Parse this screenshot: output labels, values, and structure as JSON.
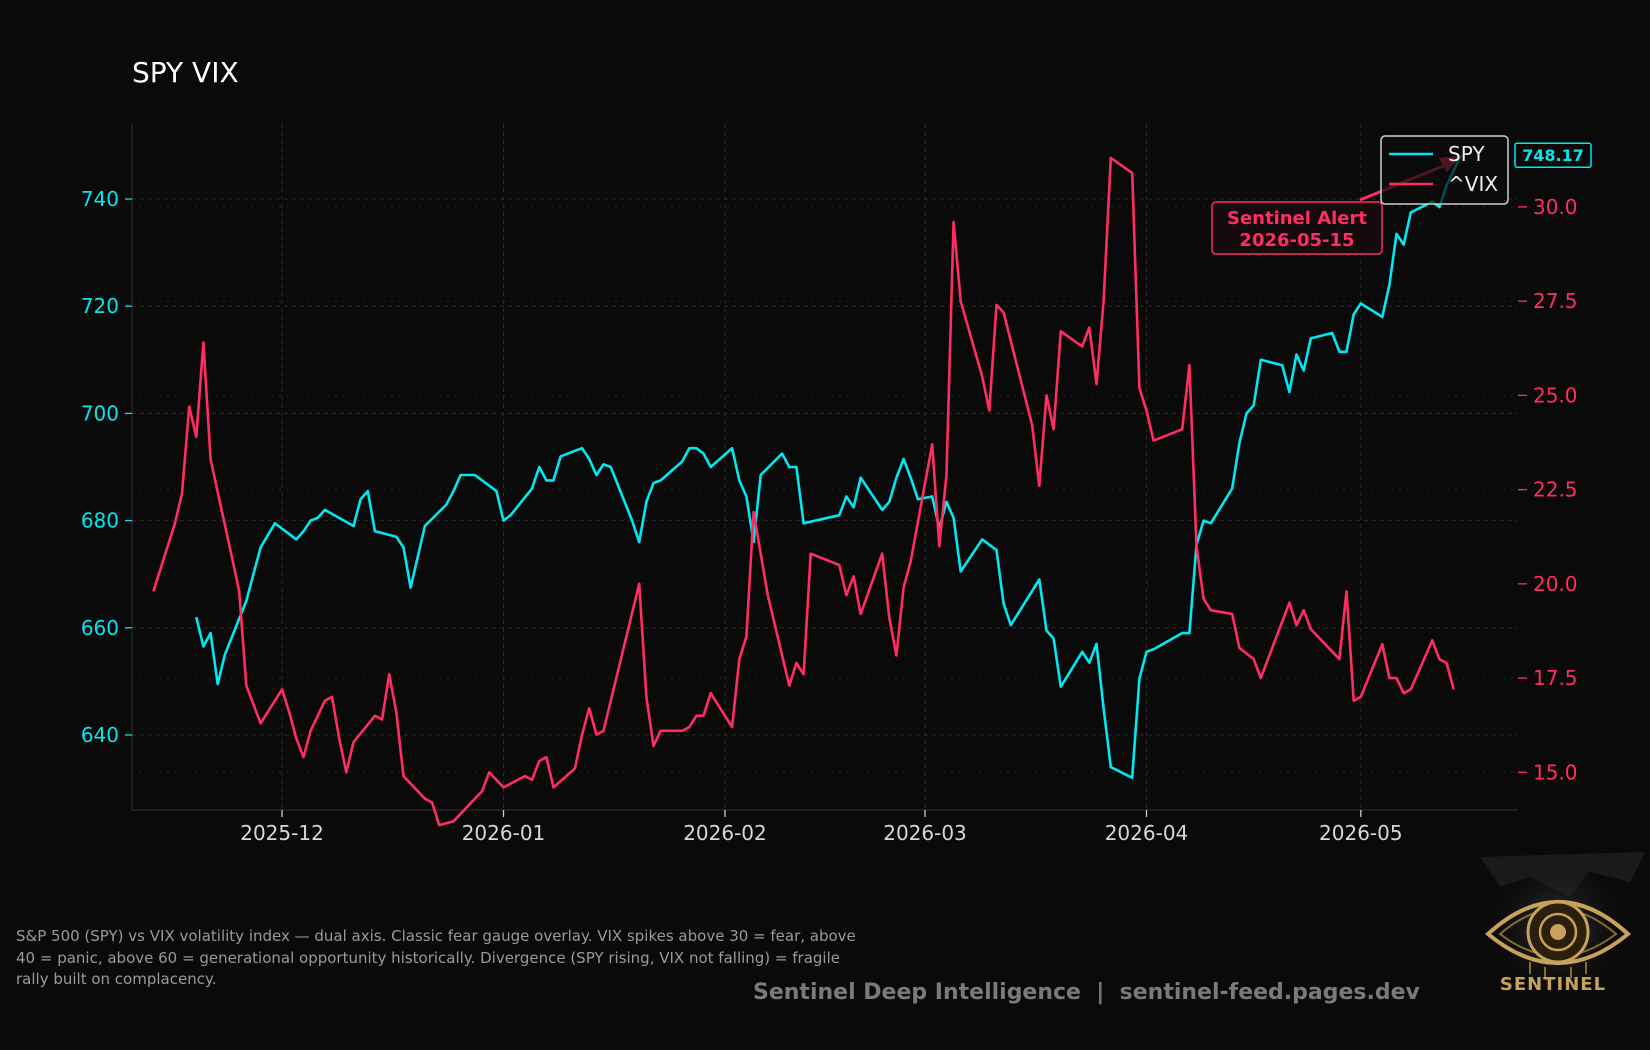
{
  "chart_data": {
    "type": "line",
    "title": "SPY VIX",
    "xlabel": "",
    "ylabel_left": "",
    "ylabel_right": "",
    "x_range": [
      "2025-11-10",
      "2026-05-23"
    ],
    "x_ticks": [
      "2025-12-01",
      "2026-01-01",
      "2026-02-01",
      "2026-03-01",
      "2026-04-01",
      "2026-05-01"
    ],
    "x_tick_labels": [
      "2025-12",
      "2026-01",
      "2026-02",
      "2026-03",
      "2026-04",
      "2026-05"
    ],
    "y_left": {
      "ylim": [
        626,
        754
      ],
      "ticks": [
        640,
        660,
        680,
        700,
        720,
        740
      ],
      "color": "#00e8f0"
    },
    "y_right": {
      "ylim": [
        14.0,
        32.2
      ],
      "ticks": [
        15.0,
        17.5,
        20.0,
        22.5,
        25.0,
        27.5,
        30.0
      ],
      "color": "#ff2d62"
    },
    "grid": true,
    "legend_placement": "top-right",
    "series": [
      {
        "name": "SPY",
        "axis": "left",
        "color": "#00e8f0",
        "points": [
          [
            "2025-11-19",
            662
          ],
          [
            "2025-11-20",
            656.5
          ],
          [
            "2025-11-21",
            659
          ],
          [
            "2025-11-22",
            649.5
          ],
          [
            "2025-11-23",
            655
          ],
          [
            "2025-11-26",
            665
          ],
          [
            "2025-11-28",
            675
          ],
          [
            "2025-11-30",
            679.5
          ],
          [
            "2025-12-03",
            676.5
          ],
          [
            "2025-12-04",
            678
          ],
          [
            "2025-12-05",
            680
          ],
          [
            "2025-12-06",
            680.5
          ],
          [
            "2025-12-07",
            682
          ],
          [
            "2025-12-11",
            679
          ],
          [
            "2025-12-12",
            684
          ],
          [
            "2025-12-13",
            685.5
          ],
          [
            "2025-12-14",
            678
          ],
          [
            "2025-12-17",
            677
          ],
          [
            "2025-12-18",
            675
          ],
          [
            "2025-12-19",
            667.5
          ],
          [
            "2025-12-21",
            679
          ],
          [
            "2025-12-24",
            683
          ],
          [
            "2025-12-25",
            685.5
          ],
          [
            "2025-12-26",
            688.5
          ],
          [
            "2025-12-28",
            688.5
          ],
          [
            "2025-12-31",
            685.5
          ],
          [
            "2026-01-01",
            680
          ],
          [
            "2026-01-02",
            681
          ],
          [
            "2026-01-05",
            686
          ],
          [
            "2026-01-06",
            690
          ],
          [
            "2026-01-07",
            687.5
          ],
          [
            "2026-01-08",
            687.5
          ],
          [
            "2026-01-09",
            692
          ],
          [
            "2026-01-11",
            693
          ],
          [
            "2026-01-12",
            693.5
          ],
          [
            "2026-01-13",
            691.5
          ],
          [
            "2026-01-14",
            688.5
          ],
          [
            "2026-01-15",
            690.5
          ],
          [
            "2026-01-16",
            690
          ],
          [
            "2026-01-19",
            680
          ],
          [
            "2026-01-20",
            676
          ],
          [
            "2026-01-21",
            683.5
          ],
          [
            "2026-01-22",
            687
          ],
          [
            "2026-01-23",
            687.5
          ],
          [
            "2026-01-26",
            691
          ],
          [
            "2026-01-27",
            693.5
          ],
          [
            "2026-01-28",
            693.5
          ],
          [
            "2026-01-29",
            692.5
          ],
          [
            "2026-01-30",
            690
          ],
          [
            "2026-02-02",
            693.5
          ],
          [
            "2026-02-03",
            687.5
          ],
          [
            "2026-02-04",
            684.5
          ],
          [
            "2026-02-05",
            676
          ],
          [
            "2026-02-06",
            688.5
          ],
          [
            "2026-02-09",
            692.5
          ],
          [
            "2026-02-10",
            690
          ],
          [
            "2026-02-11",
            690
          ],
          [
            "2026-02-12",
            679.5
          ],
          [
            "2026-02-17",
            681
          ],
          [
            "2026-02-18",
            684.5
          ],
          [
            "2026-02-19",
            682.5
          ],
          [
            "2026-02-20",
            688
          ],
          [
            "2026-02-23",
            682
          ],
          [
            "2026-02-24",
            683.5
          ],
          [
            "2026-02-25",
            688
          ],
          [
            "2026-02-26",
            691.5
          ],
          [
            "2026-02-27",
            688
          ],
          [
            "2026-02-28",
            684
          ],
          [
            "2026-03-02",
            684.5
          ],
          [
            "2026-03-03",
            678.5
          ],
          [
            "2026-03-04",
            683.5
          ],
          [
            "2026-03-05",
            680.5
          ],
          [
            "2026-03-06",
            670.5
          ],
          [
            "2026-03-09",
            676.5
          ],
          [
            "2026-03-11",
            674.5
          ],
          [
            "2026-03-12",
            664.5
          ],
          [
            "2026-03-13",
            660.5
          ],
          [
            "2026-03-17",
            669
          ],
          [
            "2026-03-18",
            659.5
          ],
          [
            "2026-03-19",
            658
          ],
          [
            "2026-03-20",
            649
          ],
          [
            "2026-03-23",
            655.5
          ],
          [
            "2026-03-24",
            653.5
          ],
          [
            "2026-03-25",
            657
          ],
          [
            "2026-03-26",
            645
          ],
          [
            "2026-03-27",
            634
          ],
          [
            "2026-03-30",
            632
          ],
          [
            "2026-03-31",
            650.5
          ],
          [
            "2026-04-01",
            655.5
          ],
          [
            "2026-04-02",
            656
          ],
          [
            "2026-04-06",
            659
          ],
          [
            "2026-04-07",
            659
          ],
          [
            "2026-04-08",
            675.5
          ],
          [
            "2026-04-09",
            680
          ],
          [
            "2026-04-10",
            679.5
          ],
          [
            "2026-04-13",
            686
          ],
          [
            "2026-04-14",
            694.5
          ],
          [
            "2026-04-15",
            700
          ],
          [
            "2026-04-16",
            701.5
          ],
          [
            "2026-04-17",
            710
          ],
          [
            "2026-04-20",
            709
          ],
          [
            "2026-04-21",
            704
          ],
          [
            "2026-04-22",
            711
          ],
          [
            "2026-04-23",
            708
          ],
          [
            "2026-04-24",
            714
          ],
          [
            "2026-04-27",
            715
          ],
          [
            "2026-04-28",
            711.5
          ],
          [
            "2026-04-29",
            711.5
          ],
          [
            "2026-04-30",
            718.5
          ],
          [
            "2026-05-01",
            720.5
          ],
          [
            "2026-05-04",
            718
          ],
          [
            "2026-05-05",
            724
          ],
          [
            "2026-05-06",
            733.5
          ],
          [
            "2026-05-07",
            731.5
          ],
          [
            "2026-05-08",
            737.5
          ],
          [
            "2026-05-11",
            739.5
          ],
          [
            "2026-05-12",
            738.5
          ],
          [
            "2026-05-13",
            742.5
          ],
          [
            "2026-05-15",
            748.17
          ]
        ]
      },
      {
        "name": "^VIX",
        "axis": "right",
        "color": "#ff2d62",
        "points": [
          [
            "2025-11-13",
            19.8
          ],
          [
            "2025-11-16",
            21.6
          ],
          [
            "2025-11-17",
            22.4
          ],
          [
            "2025-11-18",
            24.7
          ],
          [
            "2025-11-19",
            23.9
          ],
          [
            "2025-11-20",
            26.4
          ],
          [
            "2025-11-21",
            23.3
          ],
          [
            "2025-11-24",
            20.7
          ],
          [
            "2025-11-25",
            19.8
          ],
          [
            "2025-11-26",
            17.3
          ],
          [
            "2025-11-28",
            16.3
          ],
          [
            "2025-12-01",
            17.2
          ],
          [
            "2025-12-02",
            16.6
          ],
          [
            "2025-12-03",
            15.9
          ],
          [
            "2025-12-04",
            15.4
          ],
          [
            "2025-12-05",
            16.1
          ],
          [
            "2025-12-07",
            16.9
          ],
          [
            "2025-12-08",
            17.0
          ],
          [
            "2025-12-09",
            15.9
          ],
          [
            "2025-12-10",
            15.0
          ],
          [
            "2025-12-11",
            15.8
          ],
          [
            "2025-12-14",
            16.5
          ],
          [
            "2025-12-15",
            16.4
          ],
          [
            "2025-12-16",
            17.6
          ],
          [
            "2025-12-17",
            16.6
          ],
          [
            "2025-12-18",
            14.9
          ],
          [
            "2025-12-21",
            14.3
          ],
          [
            "2025-12-22",
            14.2
          ],
          [
            "2025-12-23",
            13.6
          ],
          [
            "2025-12-25",
            13.7
          ],
          [
            "2025-12-28",
            14.3
          ],
          [
            "2025-12-29",
            14.5
          ],
          [
            "2025-12-30",
            15.0
          ],
          [
            "2026-01-01",
            14.6
          ],
          [
            "2026-01-03",
            14.8
          ],
          [
            "2026-01-04",
            14.9
          ],
          [
            "2026-01-05",
            14.8
          ],
          [
            "2026-01-06",
            15.3
          ],
          [
            "2026-01-07",
            15.4
          ],
          [
            "2026-01-08",
            14.6
          ],
          [
            "2026-01-11",
            15.1
          ],
          [
            "2026-01-12",
            16.0
          ],
          [
            "2026-01-13",
            16.7
          ],
          [
            "2026-01-14",
            16.0
          ],
          [
            "2026-01-15",
            16.1
          ],
          [
            "2026-01-20",
            20.0
          ],
          [
            "2026-01-21",
            17.0
          ],
          [
            "2026-01-22",
            15.7
          ],
          [
            "2026-01-23",
            16.1
          ],
          [
            "2026-01-26",
            16.1
          ],
          [
            "2026-01-27",
            16.2
          ],
          [
            "2026-01-28",
            16.5
          ],
          [
            "2026-01-29",
            16.5
          ],
          [
            "2026-01-30",
            17.1
          ],
          [
            "2026-02-02",
            16.2
          ],
          [
            "2026-02-03",
            18.0
          ],
          [
            "2026-02-04",
            18.6
          ],
          [
            "2026-02-05",
            21.9
          ],
          [
            "2026-02-07",
            19.7
          ],
          [
            "2026-02-10",
            17.3
          ],
          [
            "2026-02-11",
            17.9
          ],
          [
            "2026-02-12",
            17.6
          ],
          [
            "2026-02-13",
            20.8
          ],
          [
            "2026-02-17",
            20.5
          ],
          [
            "2026-02-18",
            19.7
          ],
          [
            "2026-02-19",
            20.2
          ],
          [
            "2026-02-20",
            19.2
          ],
          [
            "2026-02-23",
            20.8
          ],
          [
            "2026-02-24",
            19.1
          ],
          [
            "2026-02-25",
            18.1
          ],
          [
            "2026-02-26",
            19.9
          ],
          [
            "2026-02-27",
            20.6
          ],
          [
            "2026-03-02",
            23.7
          ],
          [
            "2026-03-03",
            21.0
          ],
          [
            "2026-03-04",
            22.9
          ],
          [
            "2026-03-05",
            29.6
          ],
          [
            "2026-03-06",
            27.5
          ],
          [
            "2026-03-09",
            25.5
          ],
          [
            "2026-03-10",
            24.6
          ],
          [
            "2026-03-11",
            27.4
          ],
          [
            "2026-03-12",
            27.2
          ],
          [
            "2026-03-16",
            24.2
          ],
          [
            "2026-03-17",
            22.6
          ],
          [
            "2026-03-18",
            25.0
          ],
          [
            "2026-03-19",
            24.1
          ],
          [
            "2026-03-20",
            26.7
          ],
          [
            "2026-03-23",
            26.3
          ],
          [
            "2026-03-24",
            26.8
          ],
          [
            "2026-03-25",
            25.3
          ],
          [
            "2026-03-26",
            27.5
          ],
          [
            "2026-03-27",
            31.3
          ],
          [
            "2026-03-30",
            30.9
          ],
          [
            "2026-03-31",
            25.2
          ],
          [
            "2026-04-01",
            24.6
          ],
          [
            "2026-04-02",
            23.8
          ],
          [
            "2026-04-06",
            24.1
          ],
          [
            "2026-04-07",
            25.8
          ],
          [
            "2026-04-08",
            21.0
          ],
          [
            "2026-04-09",
            19.6
          ],
          [
            "2026-04-10",
            19.3
          ],
          [
            "2026-04-13",
            19.2
          ],
          [
            "2026-04-14",
            18.3
          ],
          [
            "2026-04-16",
            18.0
          ],
          [
            "2026-04-17",
            17.5
          ],
          [
            "2026-04-21",
            19.5
          ],
          [
            "2026-04-22",
            18.9
          ],
          [
            "2026-04-23",
            19.3
          ],
          [
            "2026-04-24",
            18.8
          ],
          [
            "2026-04-28",
            18.0
          ],
          [
            "2026-04-29",
            19.8
          ],
          [
            "2026-04-30",
            16.9
          ],
          [
            "2026-05-01",
            17.0
          ],
          [
            "2026-05-04",
            18.4
          ],
          [
            "2026-05-05",
            17.5
          ],
          [
            "2026-05-06",
            17.5
          ],
          [
            "2026-05-07",
            17.1
          ],
          [
            "2026-05-08",
            17.2
          ],
          [
            "2026-05-11",
            18.5
          ],
          [
            "2026-05-12",
            18.0
          ],
          [
            "2026-05-13",
            17.9
          ],
          [
            "2026-05-14",
            17.2
          ]
        ]
      }
    ],
    "last_value_badge": {
      "text": "748.17",
      "series": "SPY"
    },
    "annotations": [
      {
        "line1": "Sentinel Alert",
        "line2": "2026-05-15",
        "series": "SPY",
        "date": "2026-05-15",
        "color": "#ff2d62"
      }
    ]
  },
  "caption": "S&P 500 (SPY) vs VIX volatility index — dual axis. Classic fear gauge overlay. VIX spikes above 30 = fear, above 40 = panic, above 60 = generational opportunity historically. Divergence (SPY rising, VIX not falling) = fragile rally built on complacency.",
  "footer": "Sentinel Deep Intelligence  |  sentinel-feed.pages.dev",
  "logo": {
    "icon": "eye-icon",
    "text": "SENTINEL",
    "color": "#c9a15a"
  },
  "colors": {
    "background": "#0a0a0a",
    "spy": "#00e8f0",
    "vix": "#ff2d62"
  }
}
